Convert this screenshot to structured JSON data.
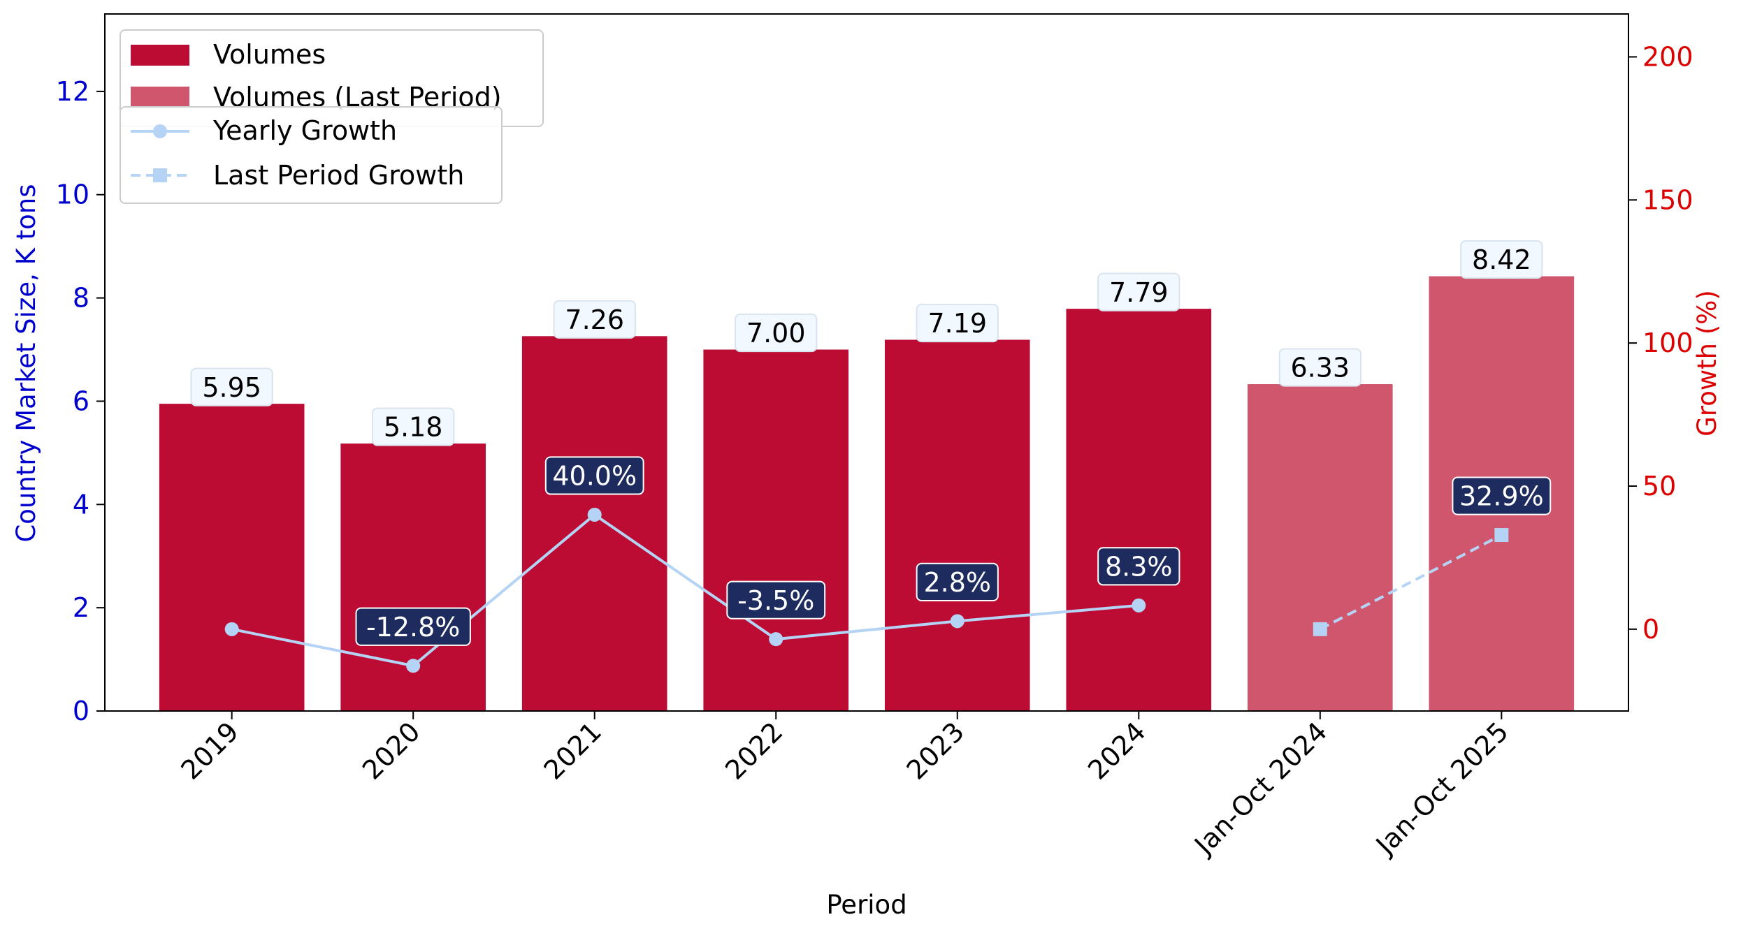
{
  "chart_data": {
    "type": "bar",
    "title": "",
    "xlabel": "Period",
    "ylabel_left": "Country Market Size, K tons",
    "ylabel_right": "Growth (%)",
    "categories": [
      "2019",
      "2020",
      "2021",
      "2022",
      "2023",
      "2024",
      "Jan-Oct 2024",
      "Jan-Oct 2025"
    ],
    "ylim_left": [
      0,
      13.5
    ],
    "yticks_left": [
      "0",
      "2",
      "4",
      "6",
      "8",
      "10",
      "12"
    ],
    "ylim_right": [
      -28.6,
      215
    ],
    "yticks_right": [
      "0",
      "50",
      "100",
      "150",
      "200"
    ],
    "bars": [
      {
        "category": "2019",
        "value": 5.95,
        "label": "5.95",
        "series": "Volumes"
      },
      {
        "category": "2020",
        "value": 5.18,
        "label": "5.18",
        "series": "Volumes"
      },
      {
        "category": "2021",
        "value": 7.26,
        "label": "7.26",
        "series": "Volumes"
      },
      {
        "category": "2022",
        "value": 7.0,
        "label": "7.00",
        "series": "Volumes"
      },
      {
        "category": "2023",
        "value": 7.19,
        "label": "7.19",
        "series": "Volumes"
      },
      {
        "category": "2024",
        "value": 7.79,
        "label": "7.79",
        "series": "Volumes"
      },
      {
        "category": "Jan-Oct 2024",
        "value": 6.33,
        "label": "6.33",
        "series": "Volumes (Last Period)"
      },
      {
        "category": "Jan-Oct 2025",
        "value": 8.42,
        "label": "8.42",
        "series": "Volumes (Last Period)"
      }
    ],
    "yearly_growth": [
      {
        "category": "2019",
        "value": 0,
        "label": ""
      },
      {
        "category": "2020",
        "value": -12.8,
        "label": "-12.8%"
      },
      {
        "category": "2021",
        "value": 40.0,
        "label": "40.0%"
      },
      {
        "category": "2022",
        "value": -3.5,
        "label": "-3.5%"
      },
      {
        "category": "2023",
        "value": 2.8,
        "label": "2.8%"
      },
      {
        "category": "2024",
        "value": 8.3,
        "label": "8.3%"
      }
    ],
    "last_period_growth": [
      {
        "category": "Jan-Oct 2024",
        "value": 0,
        "label": ""
      },
      {
        "category": "Jan-Oct 2025",
        "value": 32.9,
        "label": "32.9%"
      }
    ],
    "legend_bars": [
      "Volumes",
      "Volumes (Last Period)"
    ],
    "legend_lines": [
      "Yearly Growth",
      "Last Period Growth"
    ],
    "legend_placement": "top-left",
    "colors": {
      "volumes": "#bc0c33",
      "volumes_last": "#d0566d",
      "growth_line": "#b5d4f5",
      "growth_label_bg": "#1e2b5e",
      "left_axis": "#0000cc",
      "right_axis": "#dd0000"
    }
  }
}
